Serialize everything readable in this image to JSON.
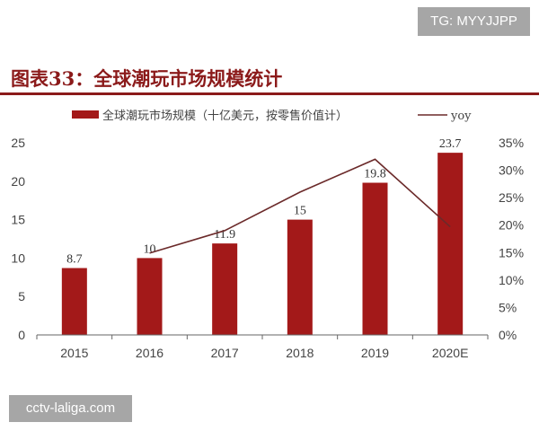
{
  "watermarks": {
    "top": "TG: MYYJJPP",
    "bottom": "cctv-laliga.com"
  },
  "title": "图表33：全球潮玩市场规模统计",
  "chart_data": {
    "type": "bar",
    "categories": [
      "2015",
      "2016",
      "2017",
      "2018",
      "2019",
      "2020E"
    ],
    "series": [
      {
        "name": "全球潮玩市场规模（十亿美元，按零售价值计）",
        "type": "bar",
        "axis": "left",
        "values": [
          8.7,
          10,
          11.9,
          15,
          19.8,
          23.7
        ],
        "labels": [
          "8.7",
          "10",
          "11.9",
          "15",
          "19.8",
          "23.7"
        ],
        "color": "#a31919"
      },
      {
        "name": "yoy",
        "type": "line",
        "axis": "right",
        "values": [
          null,
          0.149,
          0.19,
          0.26,
          0.32,
          0.197
        ],
        "color": "#6b2a2a"
      }
    ],
    "left_axis": {
      "ylim": [
        0,
        25
      ],
      "ticks": [
        "0",
        "5",
        "10",
        "15",
        "20",
        "25"
      ]
    },
    "right_axis": {
      "ylim": [
        0,
        0.35
      ],
      "ticks": [
        "0%",
        "5%",
        "10%",
        "15%",
        "20%",
        "25%",
        "30%",
        "35%"
      ]
    },
    "legend": "top",
    "grid": false
  }
}
